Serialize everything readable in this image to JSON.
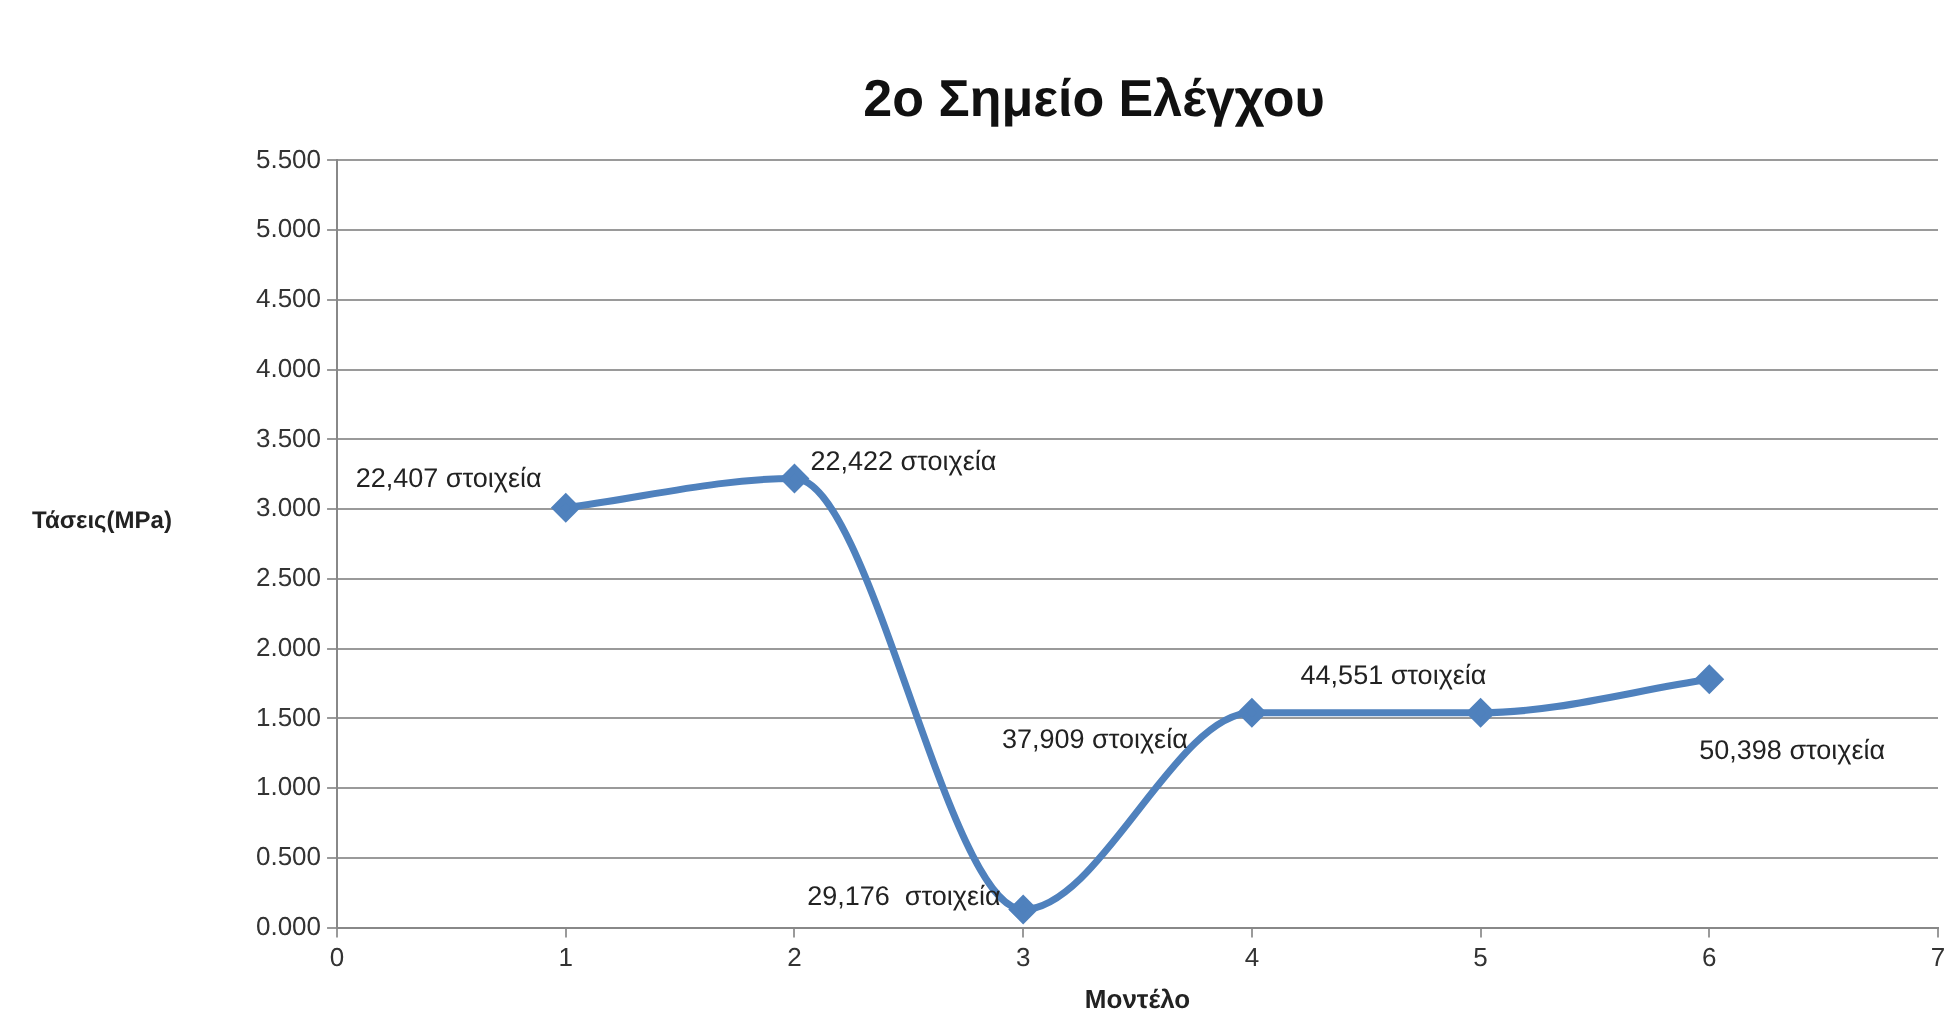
{
  "chart_data": {
    "type": "line",
    "title": "2ο Σημείο Ελέγχου",
    "xlabel": "Μοντέλο",
    "ylabel": "Τάσεις(MPa)",
    "x": [
      1,
      2,
      3,
      4,
      5,
      6
    ],
    "series": [
      {
        "color": "#4f81bd",
        "values": [
          3.01,
          3.22,
          0.13,
          1.54,
          1.54,
          1.78
        ]
      }
    ],
    "xlim": [
      0,
      7
    ],
    "xticks": [
      0,
      1,
      2,
      3,
      4,
      5,
      6,
      7
    ],
    "ylim": [
      0,
      5.5
    ],
    "yticks": [
      {
        "value": 0,
        "label": "0.000"
      },
      {
        "value": 0.5,
        "label": "0.500"
      },
      {
        "value": 1,
        "label": "1.000"
      },
      {
        "value": 1.5,
        "label": "1.500"
      },
      {
        "value": 2,
        "label": "2.000"
      },
      {
        "value": 2.5,
        "label": "2.500"
      },
      {
        "value": 3,
        "label": "3.000"
      },
      {
        "value": 3.5,
        "label": "3.500"
      },
      {
        "value": 4,
        "label": "4.000"
      },
      {
        "value": 4.5,
        "label": "4.500"
      },
      {
        "value": 5,
        "label": "5.000"
      },
      {
        "value": 5.5,
        "label": "5.500"
      }
    ],
    "annotations": [
      {
        "text": "22,407 στοιχεία",
        "x": 1,
        "y": 3.01
      },
      {
        "text": "22,422 στοιχεία",
        "x": 2,
        "y": 3.22
      },
      {
        "text": "29,176  στοιχεία",
        "x": 3,
        "y": 0.13
      },
      {
        "text": "37,909 στοιχεία",
        "x": 4,
        "y": 1.54
      },
      {
        "text": "44,551 στοιχεία",
        "x": 5,
        "y": 1.54
      },
      {
        "text": "50,398 στοιχεία",
        "x": 6,
        "y": 1.78
      }
    ],
    "grid": "y",
    "legend": false,
    "marker": "diamond",
    "line_style": "solid"
  }
}
